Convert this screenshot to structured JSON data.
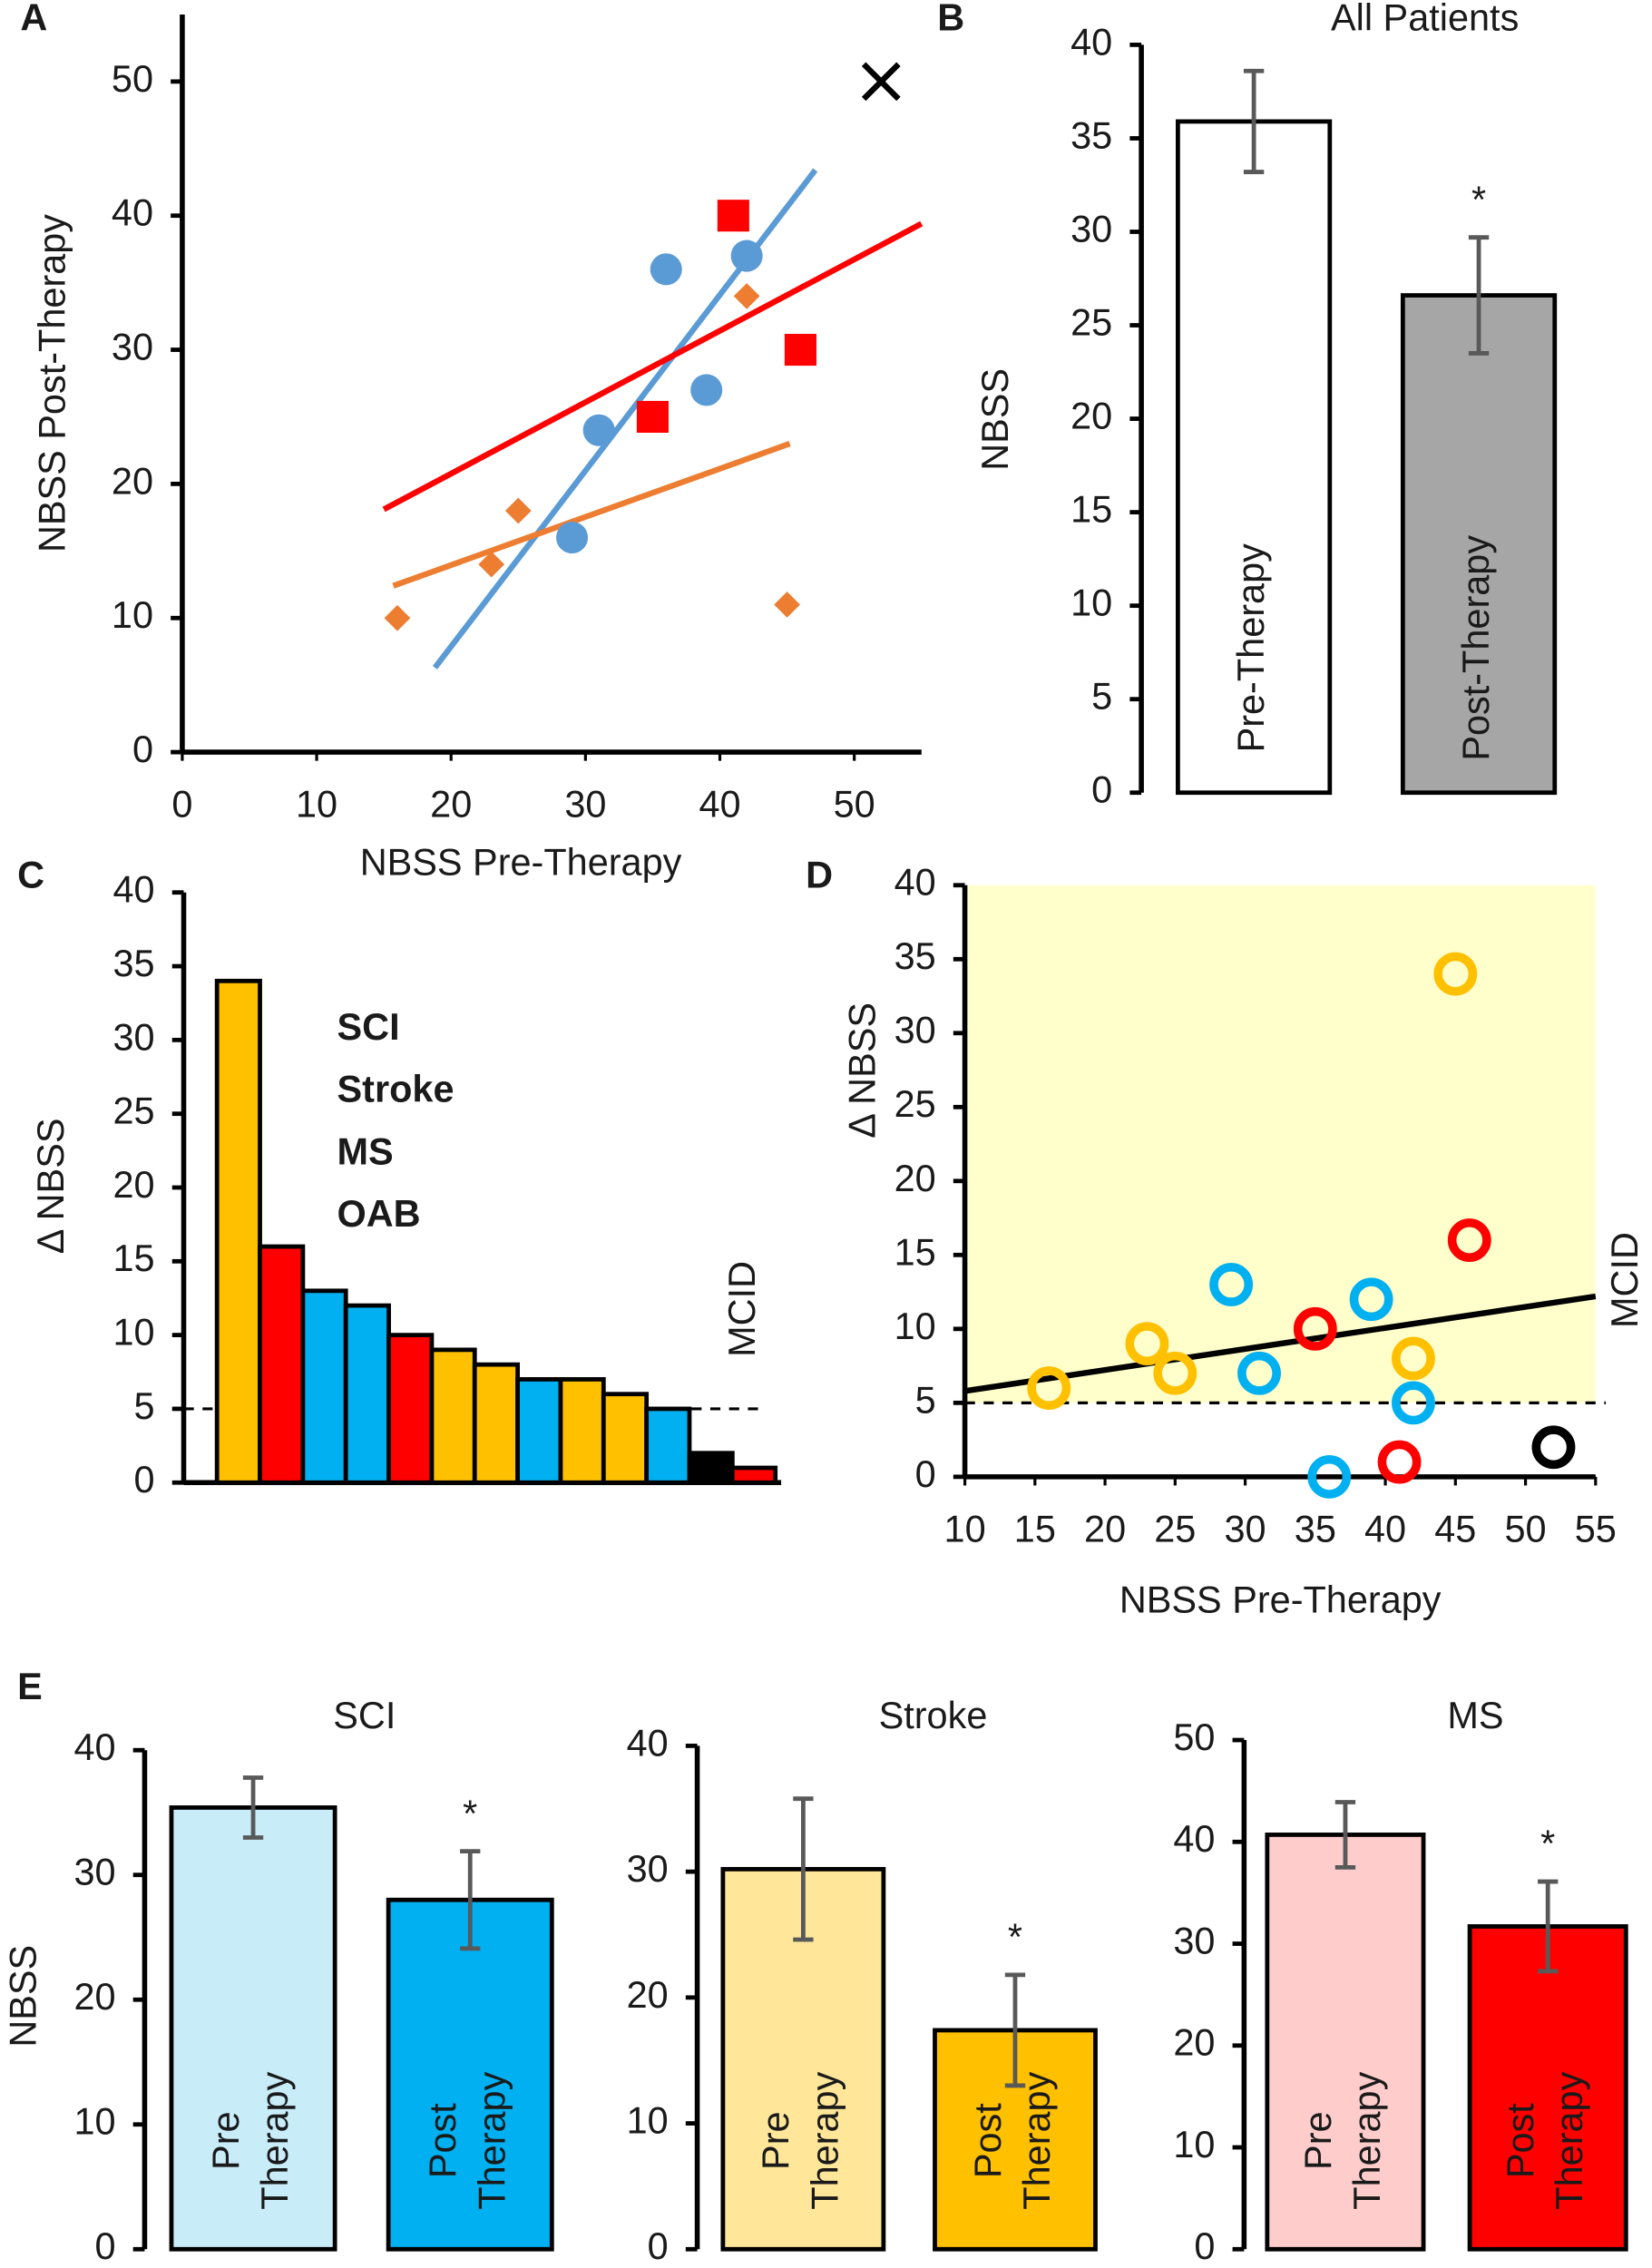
{
  "chart_data": [
    {
      "type": "scatter",
      "label": "A",
      "xlabel": "NBSS Pre-Therapy",
      "ylabel": "NBSS Post-Therapy",
      "xlim": [
        0,
        55
      ],
      "xticks": [
        0,
        10,
        20,
        30,
        40,
        50
      ],
      "ylim": [
        0,
        55
      ],
      "yticks": [
        0,
        10,
        20,
        30,
        40,
        50
      ],
      "series": [
        {
          "color": "#5b9bd5",
          "marker": "circle",
          "x": [
            29,
            31,
            36,
            39,
            42
          ],
          "values": [
            16,
            24,
            36,
            27,
            37
          ]
        },
        {
          "color": "#ff0000",
          "marker": "square",
          "x": [
            35,
            41,
            46
          ],
          "values": [
            25,
            40,
            30
          ]
        },
        {
          "color": "#ed7d31",
          "marker": "diamond",
          "x": [
            16,
            23,
            25,
            42,
            45
          ],
          "values": [
            10,
            14,
            18,
            34,
            11
          ]
        },
        {
          "color": "#000000",
          "marker": "x",
          "x": [
            52
          ],
          "values": [
            50
          ]
        }
      ],
      "trendlines": [
        {
          "color": "#5b9bd5",
          "x": [
            18.8,
            47.1
          ],
          "values": [
            6.3,
            43.4
          ]
        },
        {
          "color": "#ff0000",
          "x": [
            15,
            55
          ],
          "values": [
            18.1,
            39.4
          ]
        },
        {
          "color": "#ed7d31",
          "x": [
            15.7,
            45.2
          ],
          "values": [
            12.4,
            23
          ]
        }
      ]
    },
    {
      "type": "bar",
      "label": "B",
      "title": "All Patients",
      "ylabel": "NBSS",
      "categories": [
        "Pre-Therapy",
        "Post-Therapy"
      ],
      "values": [
        35.9,
        26.6
      ],
      "errors": [
        2.7,
        3.1
      ],
      "colors": [
        "#ffffff",
        "#a6a6a6"
      ],
      "annotations": [
        null,
        "*"
      ],
      "ylim": [
        0,
        40
      ],
      "yticks": [
        0,
        5,
        10,
        15,
        20,
        25,
        30,
        35,
        40
      ]
    },
    {
      "type": "bar",
      "label": "C",
      "ylabel": "Δ NBSS",
      "values": [
        34,
        16,
        13,
        12,
        10,
        9,
        8,
        7,
        7,
        6,
        5,
        2,
        1
      ],
      "colors": [
        "#ffc000",
        "#ff0000",
        "#00b0f0",
        "#00b0f0",
        "#ff0000",
        "#ffc000",
        "#ffc000",
        "#00b0f0",
        "#ffc000",
        "#ffc000",
        "#00b0f0",
        "#000000",
        "#ff0000"
      ],
      "legend": [
        {
          "text": "SCI",
          "color": "#00b0f0"
        },
        {
          "text": "Stroke",
          "color": "#ffc000"
        },
        {
          "text": "MS",
          "color": "#ff0000"
        },
        {
          "text": "OAB",
          "color": "#000000"
        }
      ],
      "reference_line": {
        "value": 5,
        "label": "MCID"
      },
      "ylim": [
        0,
        40
      ],
      "yticks": [
        0,
        5,
        10,
        15,
        20,
        25,
        30,
        35,
        40
      ]
    },
    {
      "type": "scatter",
      "label": "D",
      "xlabel": "NBSS Pre-Therapy",
      "ylabel": "Δ NBSS",
      "xlim": [
        10,
        55
      ],
      "xticks": [
        10,
        15,
        20,
        25,
        30,
        35,
        40,
        45,
        50,
        55
      ],
      "ylim": [
        0,
        40
      ],
      "yticks": [
        0,
        5,
        10,
        15,
        20,
        25,
        30,
        35,
        40
      ],
      "series": [
        {
          "color": "#ffc000",
          "marker": "ring",
          "x": [
            16,
            23,
            25,
            42,
            45
          ],
          "values": [
            6,
            9,
            7,
            8,
            34
          ]
        },
        {
          "color": "#00b0f0",
          "marker": "ring",
          "x": [
            29,
            31,
            36,
            39,
            42
          ],
          "values": [
            13,
            7,
            0,
            12,
            5
          ]
        },
        {
          "color": "#ff0000",
          "marker": "ring",
          "x": [
            35,
            41,
            46
          ],
          "values": [
            10,
            1,
            16
          ]
        },
        {
          "color": "#000000",
          "marker": "ring",
          "x": [
            52
          ],
          "values": [
            2
          ]
        }
      ],
      "trendlines": [
        {
          "color": "#000000",
          "x": [
            10,
            55
          ],
          "values": [
            5.8,
            12.2
          ]
        }
      ],
      "reference_line": {
        "value": 5,
        "label": "MCID"
      },
      "shade_above_reference": "#ffffcc"
    },
    {
      "type": "bar",
      "label": "E",
      "title": "SCI",
      "ylabel": "NBSS",
      "categories": [
        [
          "Pre",
          "Therapy"
        ],
        [
          "Post",
          "Therapy"
        ]
      ],
      "values": [
        35.4,
        28
      ],
      "errors": [
        2.4,
        3.9
      ],
      "colors": [
        "#c9ecf9",
        "#00b0f0"
      ],
      "annotations": [
        null,
        "*"
      ],
      "ylim": [
        0,
        40
      ],
      "yticks": [
        0,
        10,
        20,
        30,
        40
      ]
    },
    {
      "type": "bar",
      "title": "Stroke",
      "categories": [
        [
          "Pre",
          "Therapy"
        ],
        [
          "Post",
          "Therapy"
        ]
      ],
      "values": [
        30.2,
        17.4
      ],
      "errors": [
        5.6,
        4.4
      ],
      "colors": [
        "#ffe699",
        "#ffc000"
      ],
      "annotations": [
        null,
        "*"
      ],
      "ylim": [
        0,
        40
      ],
      "yticks": [
        0,
        10,
        20,
        30,
        40
      ]
    },
    {
      "type": "bar",
      "title": "MS",
      "categories": [
        [
          "Pre",
          "Therapy"
        ],
        [
          "Post",
          "Therapy"
        ]
      ],
      "values": [
        40.7,
        31.7
      ],
      "errors": [
        3.2,
        4.4
      ],
      "colors": [
        "#ffcccc",
        "#ff0000"
      ],
      "annotations": [
        null,
        "*"
      ],
      "ylim": [
        0,
        50
      ],
      "yticks": [
        0,
        10,
        20,
        30,
        40,
        50
      ]
    }
  ]
}
